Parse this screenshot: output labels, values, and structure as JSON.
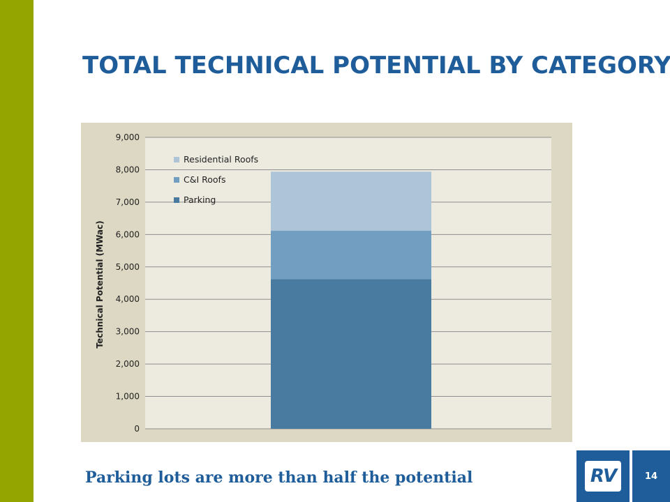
{
  "slide": {
    "title": "TOTAL TECHNICAL POTENTIAL BY CATEGORY",
    "subtitle": "Parking lots are more than half the potential",
    "page_number": "14",
    "logo_text": "RV"
  },
  "colors": {
    "accent_bar": "#95a500",
    "title": "#1f5d9a",
    "chart_frame": "#ddd8c3",
    "plot_bg": "#edeae0",
    "residential_roofs": "#adc4d9",
    "ci_roofs": "#729fc1",
    "parking": "#497a9f"
  },
  "chart_data": {
    "type": "bar",
    "stacked": true,
    "categories": [
      ""
    ],
    "series": [
      {
        "name": "Parking",
        "values": [
          4620
        ]
      },
      {
        "name": "C&I Roofs",
        "values": [
          1500
        ]
      },
      {
        "name": "Residential Roofs",
        "values": [
          1820
        ]
      }
    ],
    "ylabel": "Technical Potential (MWac)",
    "xlabel": "",
    "ylim": [
      0,
      9000
    ],
    "yticks": [
      "0",
      "1,000",
      "2,000",
      "3,000",
      "4,000",
      "5,000",
      "6,000",
      "7,000",
      "8,000",
      "9,000"
    ],
    "legend_order": [
      "Residential Roofs",
      "C&I Roofs",
      "Parking"
    ],
    "legend_position": "top-left",
    "grid": true
  }
}
